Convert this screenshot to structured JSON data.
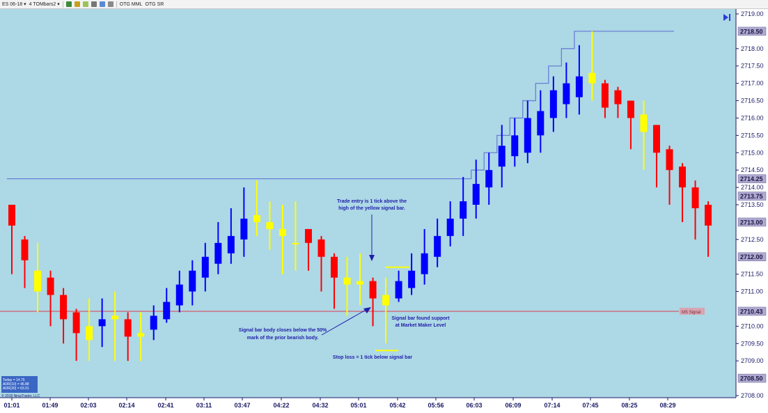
{
  "toolbar": {
    "instrument": "ES 06-18",
    "bar_type": "4 TOMbars2",
    "indicator_1": "OTG MML",
    "indicator_2": "OTG SR"
  },
  "colors": {
    "background": "#add8e6",
    "bull": "#0000ff",
    "bear": "#ff0000",
    "signal": "#ffff00",
    "level_line": "#6a7fd6",
    "mm_line": "#c58a9a"
  },
  "icons": [
    "chart-type-icon",
    "draw-line-icon",
    "pencil-icon",
    "crosshair-icon",
    "zoom-icon",
    "properties-icon"
  ],
  "chart_data": {
    "type": "candlestick",
    "x_tick_labels": [
      "01:01",
      "01:49",
      "02:03",
      "02:14",
      "02:41",
      "03:11",
      "03:47",
      "04:22",
      "04:32",
      "05:01",
      "05:42",
      "05:56",
      "06:03",
      "06:09",
      "07:14",
      "07:45",
      "08:25",
      "08:29"
    ],
    "y_tick_labels": [
      "2719.00",
      "2718.00",
      "2717.50",
      "2717.00",
      "2716.50",
      "2716.00",
      "2715.50",
      "2715.00",
      "2714.50",
      "2714.00",
      "2713.50",
      "2712.50",
      "2711.50",
      "2711.00",
      "2710.00",
      "2709.50",
      "2709.00",
      "2708.00"
    ],
    "ylim": [
      2708,
      2719.25
    ],
    "candles": [
      {
        "o": 2712.9,
        "h": 2713.4,
        "l": 2711.5,
        "c": 2713.5,
        "color": "bear"
      },
      {
        "o": 2712.5,
        "h": 2712.6,
        "l": 2711.1,
        "c": 2711.9,
        "color": "bear"
      },
      {
        "o": 2711.6,
        "h": 2712.4,
        "l": 2710.4,
        "c": 2711.0,
        "color": "signal"
      },
      {
        "o": 2711.4,
        "h": 2711.6,
        "l": 2710.0,
        "c": 2710.9,
        "color": "bear"
      },
      {
        "o": 2710.9,
        "h": 2711.1,
        "l": 2709.5,
        "c": 2710.2,
        "color": "bear"
      },
      {
        "o": 2710.4,
        "h": 2710.5,
        "l": 2709.0,
        "c": 2709.8,
        "color": "bear"
      },
      {
        "o": 2710.0,
        "h": 2710.8,
        "l": 2709.0,
        "c": 2709.6,
        "color": "signal"
      },
      {
        "o": 2710.0,
        "h": 2710.8,
        "l": 2709.4,
        "c": 2710.2,
        "color": "bull"
      },
      {
        "o": 2710.2,
        "h": 2711.0,
        "l": 2709.0,
        "c": 2710.3,
        "color": "signal"
      },
      {
        "o": 2710.2,
        "h": 2710.4,
        "l": 2709.0,
        "c": 2709.7,
        "color": "bear"
      },
      {
        "o": 2709.8,
        "h": 2710.4,
        "l": 2709.0,
        "c": 2709.7,
        "color": "signal"
      },
      {
        "o": 2709.9,
        "h": 2710.6,
        "l": 2709.6,
        "c": 2710.3,
        "color": "bull"
      },
      {
        "o": 2710.2,
        "h": 2711.1,
        "l": 2710.1,
        "c": 2710.7,
        "color": "bull"
      },
      {
        "o": 2710.6,
        "h": 2711.6,
        "l": 2710.4,
        "c": 2711.2,
        "color": "bull"
      },
      {
        "o": 2711.0,
        "h": 2711.9,
        "l": 2710.6,
        "c": 2711.6,
        "color": "bull"
      },
      {
        "o": 2711.4,
        "h": 2712.4,
        "l": 2711.0,
        "c": 2712.0,
        "color": "bull"
      },
      {
        "o": 2711.8,
        "h": 2713.0,
        "l": 2711.5,
        "c": 2712.4,
        "color": "bull"
      },
      {
        "o": 2712.1,
        "h": 2713.4,
        "l": 2711.8,
        "c": 2712.6,
        "color": "bull"
      },
      {
        "o": 2712.5,
        "h": 2714.0,
        "l": 2712.0,
        "c": 2713.1,
        "color": "bull"
      },
      {
        "o": 2713.2,
        "h": 2714.2,
        "l": 2712.6,
        "c": 2713.0,
        "color": "signal"
      },
      {
        "o": 2713.0,
        "h": 2713.6,
        "l": 2712.2,
        "c": 2712.8,
        "color": "signal"
      },
      {
        "o": 2712.8,
        "h": 2713.5,
        "l": 2711.5,
        "c": 2712.6,
        "color": "signal"
      },
      {
        "o": 2712.4,
        "h": 2713.6,
        "l": 2711.6,
        "c": 2712.4,
        "color": "signal"
      },
      {
        "o": 2712.8,
        "h": 2712.7,
        "l": 2711.6,
        "c": 2712.4,
        "color": "bear"
      },
      {
        "o": 2712.5,
        "h": 2712.6,
        "l": 2711.0,
        "c": 2712.0,
        "color": "bear"
      },
      {
        "o": 2712.0,
        "h": 2712.1,
        "l": 2710.5,
        "c": 2711.4,
        "color": "bear"
      },
      {
        "o": 2711.4,
        "h": 2712.0,
        "l": 2710.3,
        "c": 2711.2,
        "color": "signal"
      },
      {
        "o": 2711.3,
        "h": 2712.1,
        "l": 2710.6,
        "c": 2711.2,
        "color": "signal"
      },
      {
        "o": 2711.3,
        "h": 2711.4,
        "l": 2710.0,
        "c": 2710.8,
        "color": "bear"
      },
      {
        "o": 2710.6,
        "h": 2711.4,
        "l": 2709.5,
        "c": 2710.9,
        "color": "signal"
      },
      {
        "o": 2710.8,
        "h": 2711.6,
        "l": 2710.7,
        "c": 2711.3,
        "color": "bull"
      },
      {
        "o": 2711.1,
        "h": 2712.1,
        "l": 2710.9,
        "c": 2711.6,
        "color": "bull"
      },
      {
        "o": 2711.5,
        "h": 2712.8,
        "l": 2711.2,
        "c": 2712.1,
        "color": "bull"
      },
      {
        "o": 2712.0,
        "h": 2713.1,
        "l": 2711.7,
        "c": 2712.6,
        "color": "bull"
      },
      {
        "o": 2712.6,
        "h": 2713.6,
        "l": 2712.3,
        "c": 2713.1,
        "color": "bull"
      },
      {
        "o": 2713.1,
        "h": 2714.3,
        "l": 2712.6,
        "c": 2713.6,
        "color": "bull"
      },
      {
        "o": 2713.5,
        "h": 2714.8,
        "l": 2713.1,
        "c": 2714.1,
        "color": "bull"
      },
      {
        "o": 2714.0,
        "h": 2715.0,
        "l": 2713.5,
        "c": 2714.5,
        "color": "bull"
      },
      {
        "o": 2714.6,
        "h": 2715.8,
        "l": 2714.0,
        "c": 2715.2,
        "color": "bull"
      },
      {
        "o": 2714.9,
        "h": 2716.0,
        "l": 2714.6,
        "c": 2715.5,
        "color": "bull"
      },
      {
        "o": 2715.0,
        "h": 2716.5,
        "l": 2714.7,
        "c": 2716.0,
        "color": "bull"
      },
      {
        "o": 2715.5,
        "h": 2716.8,
        "l": 2715.0,
        "c": 2716.2,
        "color": "bull"
      },
      {
        "o": 2716.0,
        "h": 2717.2,
        "l": 2715.6,
        "c": 2716.8,
        "color": "bull"
      },
      {
        "o": 2716.4,
        "h": 2717.6,
        "l": 2716.0,
        "c": 2717.0,
        "color": "bull"
      },
      {
        "o": 2716.6,
        "h": 2718.1,
        "l": 2716.1,
        "c": 2717.2,
        "color": "bull"
      },
      {
        "o": 2717.3,
        "h": 2718.5,
        "l": 2716.5,
        "c": 2717.0,
        "color": "signal"
      },
      {
        "o": 2717.0,
        "h": 2717.1,
        "l": 2716.0,
        "c": 2716.3,
        "color": "bear"
      },
      {
        "o": 2716.8,
        "h": 2716.9,
        "l": 2716.0,
        "c": 2716.4,
        "color": "bear"
      },
      {
        "o": 2716.5,
        "h": 2716.5,
        "l": 2715.1,
        "c": 2716.0,
        "color": "bear"
      },
      {
        "o": 2716.1,
        "h": 2716.5,
        "l": 2714.5,
        "c": 2715.6,
        "color": "signal"
      },
      {
        "o": 2715.8,
        "h": 2715.8,
        "l": 2714.0,
        "c": 2715.0,
        "color": "bear"
      },
      {
        "o": 2715.1,
        "h": 2715.2,
        "l": 2713.5,
        "c": 2714.5,
        "color": "bear"
      },
      {
        "o": 2714.6,
        "h": 2714.7,
        "l": 2713.0,
        "c": 2714.0,
        "color": "bear"
      },
      {
        "o": 2714.0,
        "h": 2714.2,
        "l": 2712.5,
        "c": 2713.4,
        "color": "bear"
      },
      {
        "o": 2713.5,
        "h": 2713.6,
        "l": 2712.0,
        "c": 2712.9,
        "color": "bear"
      }
    ],
    "series": [
      {
        "name": "OTG SR",
        "type": "step",
        "values": [
          {
            "i": 33,
            "v": 2714.25
          },
          {
            "i": 36,
            "v": 2714.5
          },
          {
            "i": 37,
            "v": 2715.0
          },
          {
            "i": 38,
            "v": 2715.5
          },
          {
            "i": 39,
            "v": 2716.0
          },
          {
            "i": 40,
            "v": 2716.5
          },
          {
            "i": 41,
            "v": 2717.0
          },
          {
            "i": 42,
            "v": 2717.5
          },
          {
            "i": 43,
            "v": 2718.0
          },
          {
            "i": 44,
            "v": 2718.5
          }
        ]
      },
      {
        "name": "MS Signal",
        "type": "hline",
        "value": 2710.43
      }
    ],
    "level_lines": [
      {
        "value": 2714.25,
        "label": "2714.25"
      },
      {
        "value": 2718.5,
        "label": "2718.50"
      },
      {
        "value": 2713.75,
        "label": "2713.75"
      },
      {
        "value": 2713.0,
        "label": "2713.00"
      },
      {
        "value": 2712.0,
        "label": "2712.00"
      },
      {
        "value": 2708.5,
        "label": "2708.50"
      },
      {
        "value": 2710.43,
        "label": "2710.43"
      }
    ],
    "mm_label": "MS Signal",
    "entry_level": 2711.7,
    "stop_level": 2709.3,
    "signal_bar_index": 29,
    "annotations": {
      "entry_line1": "Trade entry is 1 tick above the",
      "entry_line2": "high of the yellow signal bar.",
      "support_line1": "Signal bar found support",
      "support_line2": "at Market Maker Level",
      "close_line1": "Signal bar body closes below the 50%",
      "close_line2": "mark of the prior bearish body.",
      "stop": "Stop loss = 1 tick below signal bar"
    },
    "stats": {
      "today": "Today = 14.75",
      "adr10": "ADR(10) = 46.88",
      "adr20": "ADR(20) = 63.01",
      "copyright": "© 2018 NinjaTrader, LLC"
    }
  }
}
